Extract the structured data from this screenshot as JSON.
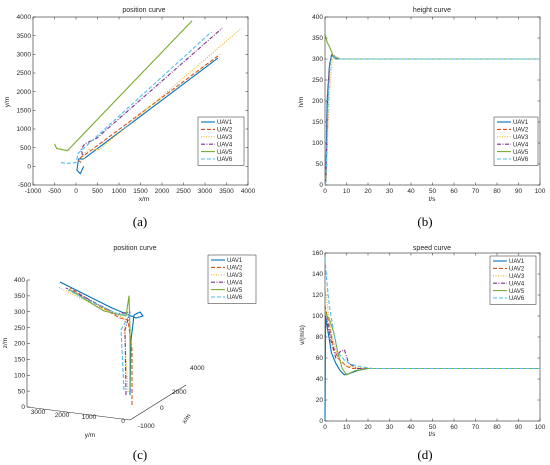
{
  "colors": {
    "UAV1": "#0072BD",
    "UAV2": "#D95319",
    "UAV3": "#EDB120",
    "UAV4": "#7E2F8E",
    "UAV5": "#77AC30",
    "UAV6": "#4DBEEE",
    "axis": "#262626"
  },
  "chart_data": [
    {
      "type": "line",
      "title": "position curve",
      "xlabel": "x/m",
      "ylabel": "y/m",
      "xlim": [
        -1000,
        4000
      ],
      "ylim": [
        -500,
        4000
      ],
      "xticks": [
        -1000,
        -500,
        0,
        500,
        1000,
        1500,
        2000,
        2500,
        3000,
        3500,
        4000
      ],
      "yticks": [
        -500,
        0,
        500,
        1000,
        1500,
        2000,
        2500,
        3000,
        3500,
        4000
      ],
      "legend": "bottom-right",
      "series": [
        {
          "name": "UAV1",
          "dash": "solid",
          "x": [
            180,
            100,
            20,
            60,
            180,
            3300
          ],
          "y": [
            0,
            -200,
            -100,
            200,
            200,
            2900
          ]
        },
        {
          "name": "UAV2",
          "dash": "dashed",
          "x": [
            120,
            60,
            120,
            200,
            3350
          ],
          "y": [
            100,
            150,
            250,
            300,
            3000
          ]
        },
        {
          "name": "UAV3",
          "dash": "dotted",
          "x": [
            200,
            150,
            300,
            550,
            3850
          ],
          "y": [
            200,
            300,
            450,
            450,
            3700
          ]
        },
        {
          "name": "UAV4",
          "dash": "dashdot",
          "x": [
            150,
            120,
            200,
            480,
            3400
          ],
          "y": [
            300,
            450,
            600,
            750,
            3700
          ]
        },
        {
          "name": "UAV5",
          "dash": "solid",
          "x": [
            -500,
            -450,
            -200,
            2700
          ],
          "y": [
            600,
            480,
            420,
            3900
          ]
        },
        {
          "name": "UAV6",
          "dash": "dashed",
          "x": [
            -350,
            -200,
            0,
            50,
            3150
          ],
          "y": [
            100,
            80,
            100,
            350,
            3600
          ]
        }
      ]
    },
    {
      "type": "line",
      "title": "height curve",
      "xlabel": "t/s",
      "ylabel": "h/m",
      "xlim": [
        0,
        100
      ],
      "ylim": [
        0,
        400
      ],
      "xticks": [
        0,
        10,
        20,
        30,
        40,
        50,
        60,
        70,
        80,
        90,
        100
      ],
      "yticks": [
        0,
        50,
        100,
        150,
        200,
        250,
        300,
        350,
        400
      ],
      "legend": "right",
      "series": [
        {
          "name": "UAV1",
          "dash": "solid",
          "x": [
            0,
            0.4,
            1,
            2,
            3,
            4,
            5,
            7,
            100
          ],
          "y": [
            0,
            10,
            200,
            280,
            310,
            305,
            300,
            300,
            300
          ]
        },
        {
          "name": "UAV2",
          "dash": "dashed",
          "x": [
            0,
            0.5,
            1.2,
            2,
            3,
            4,
            5,
            7,
            100
          ],
          "y": [
            0,
            20,
            180,
            270,
            305,
            310,
            302,
            300,
            300
          ]
        },
        {
          "name": "UAV3",
          "dash": "dotted",
          "x": [
            0,
            0.6,
            1.5,
            2.5,
            3.5,
            5,
            7,
            100
          ],
          "y": [
            0,
            15,
            150,
            250,
            300,
            305,
            300,
            300
          ]
        },
        {
          "name": "UAV4",
          "dash": "dashdot",
          "x": [
            0,
            0.5,
            1.2,
            2.2,
            3.5,
            5,
            7,
            100
          ],
          "y": [
            0,
            30,
            200,
            290,
            312,
            303,
            300,
            300
          ]
        },
        {
          "name": "UAV5",
          "dash": "solid",
          "x": [
            0,
            0.3,
            1,
            2,
            3,
            4,
            6,
            100
          ],
          "y": [
            360,
            355,
            340,
            330,
            318,
            305,
            300,
            300
          ]
        },
        {
          "name": "UAV6",
          "dash": "dashed",
          "x": [
            0,
            0.5,
            1.5,
            2.5,
            3.5,
            5,
            7,
            100
          ],
          "y": [
            0,
            25,
            210,
            295,
            310,
            302,
            300,
            300
          ]
        }
      ]
    },
    {
      "type": "line3d",
      "title": "position curve",
      "xlabel": "x/m",
      "ylabel": "y/m",
      "zlabel": "z/m",
      "zticks": [
        0,
        50,
        100,
        150,
        200,
        250,
        300,
        350,
        400
      ],
      "yticks": [
        0,
        1000,
        2000,
        3000
      ],
      "xticks": [
        -1000,
        0,
        2000,
        4000
      ],
      "legend": "top-right",
      "series": [
        {
          "name": "UAV1",
          "dash": "solid"
        },
        {
          "name": "UAV2",
          "dash": "dashed"
        },
        {
          "name": "UAV3",
          "dash": "dotted"
        },
        {
          "name": "UAV4",
          "dash": "dashdot"
        },
        {
          "name": "UAV5",
          "dash": "solid"
        },
        {
          "name": "UAV6",
          "dash": "dashed"
        }
      ]
    },
    {
      "type": "line",
      "title": "speed curve",
      "xlabel": "t/s",
      "ylabel": "v/(m/s)",
      "xlim": [
        0,
        100
      ],
      "ylim": [
        0,
        160
      ],
      "xticks": [
        0,
        10,
        20,
        30,
        40,
        50,
        60,
        70,
        80,
        90,
        100
      ],
      "yticks": [
        0,
        20,
        40,
        60,
        80,
        100,
        120,
        140,
        160
      ],
      "legend": "top-right",
      "series": [
        {
          "name": "UAV1",
          "dash": "solid",
          "x": [
            0,
            0.3,
            1,
            2,
            3,
            5,
            7,
            9,
            11,
            15,
            20,
            30,
            100
          ],
          "y": [
            0,
            100,
            90,
            78,
            65,
            55,
            48,
            44,
            45,
            48,
            50,
            50,
            50
          ]
        },
        {
          "name": "UAV2",
          "dash": "dashed",
          "x": [
            0,
            1,
            2,
            4,
            6,
            8,
            10,
            13,
            18,
            30,
            100
          ],
          "y": [
            110,
            100,
            90,
            70,
            60,
            56,
            52,
            50,
            50,
            50,
            50
          ]
        },
        {
          "name": "UAV3",
          "dash": "dotted",
          "x": [
            0,
            1,
            2,
            4,
            6,
            8,
            11,
            15,
            20,
            100
          ],
          "y": [
            130,
            112,
            95,
            75,
            62,
            55,
            52,
            51,
            50,
            50
          ]
        },
        {
          "name": "UAV4",
          "dash": "dashdot",
          "x": [
            0,
            1,
            3,
            5,
            7,
            9,
            11,
            15,
            20,
            100
          ],
          "y": [
            100,
            95,
            75,
            60,
            66,
            68,
            55,
            50,
            50,
            50
          ]
        },
        {
          "name": "UAV5",
          "dash": "solid",
          "x": [
            0,
            1,
            2,
            4,
            6,
            8,
            10,
            14,
            20,
            100
          ],
          "y": [
            105,
            100,
            97,
            85,
            65,
            50,
            44,
            48,
            50,
            50
          ]
        },
        {
          "name": "UAV6",
          "dash": "dashed",
          "x": [
            0,
            1,
            2,
            4,
            6,
            9,
            12,
            16,
            22,
            100
          ],
          "y": [
            155,
            130,
            110,
            85,
            65,
            58,
            54,
            52,
            50,
            50
          ]
        }
      ]
    }
  ],
  "captions": [
    "(a)",
    "(b)",
    "(c)",
    "(d)"
  ]
}
